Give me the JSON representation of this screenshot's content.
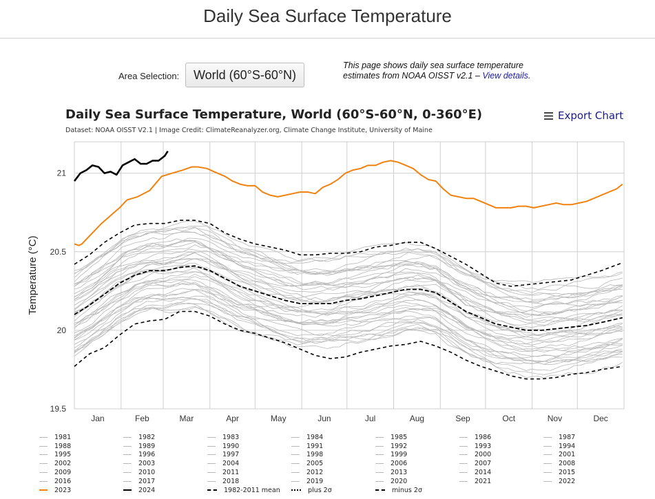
{
  "header": {
    "page_title": "Daily Sea Surface Temperature"
  },
  "controls": {
    "area_label": "Area Selection:",
    "area_value": "World (60°S-60°N)",
    "info_text": "This page shows daily sea surface temperature estimates from NOAA OISST v2.1 – ",
    "info_link": "View details",
    "info_end": "."
  },
  "chart_header": {
    "title": "Daily Sea Surface Temperature, World (60°S-60°N, 0-360°E)",
    "subtitle": "Dataset: NOAA OISST V2.1 | Image Credit: ClimateReanalyzer.org, Climate Change Institute, University of Maine",
    "export_label": "Export Chart",
    "export_icon": "menu-icon"
  },
  "chart_data": {
    "type": "line",
    "ylabel": "Temperature (°C)",
    "ylim": [
      19.5,
      21.2
    ],
    "yticks": [
      19.5,
      20,
      20.5,
      21
    ],
    "xlim": [
      0,
      365
    ],
    "month_labels": [
      "Jan",
      "Feb",
      "Mar",
      "Apr",
      "May",
      "Jun",
      "Jul",
      "Aug",
      "Sep",
      "Oct",
      "Nov",
      "Dec"
    ],
    "month_starts": [
      0,
      31,
      59,
      90,
      120,
      151,
      181,
      212,
      243,
      273,
      304,
      334
    ],
    "grid": true,
    "colors": {
      "background_years": "#b8b8b8",
      "y2023": "#f0820f",
      "y2024": "#000000",
      "stats": "#000000"
    },
    "series": [
      {
        "name": "2023",
        "x": [
          0,
          3,
          5,
          8,
          12,
          18,
          24,
          30,
          35,
          42,
          50,
          58,
          65,
          72,
          78,
          82,
          88,
          95,
          100,
          105,
          110,
          115,
          120,
          125,
          130,
          135,
          140,
          145,
          150,
          155,
          160,
          165,
          170,
          175,
          180,
          185,
          190,
          195,
          200,
          205,
          210,
          215,
          220,
          225,
          230,
          235,
          240,
          245,
          250,
          255,
          260,
          265,
          270,
          275,
          280,
          285,
          290,
          295,
          300,
          305,
          310,
          315,
          320,
          325,
          330,
          335,
          340,
          345,
          350,
          355,
          360,
          364
        ],
        "y": [
          20.55,
          20.54,
          20.55,
          20.58,
          20.62,
          20.68,
          20.73,
          20.78,
          20.83,
          20.85,
          20.89,
          20.98,
          21.0,
          21.02,
          21.04,
          21.04,
          21.03,
          21.0,
          20.98,
          20.95,
          20.93,
          20.92,
          20.92,
          20.88,
          20.86,
          20.85,
          20.86,
          20.87,
          20.88,
          20.88,
          20.87,
          20.91,
          20.93,
          20.96,
          21.0,
          21.02,
          21.03,
          21.05,
          21.05,
          21.07,
          21.08,
          21.07,
          21.05,
          21.03,
          20.99,
          20.96,
          20.95,
          20.9,
          20.86,
          20.85,
          20.84,
          20.84,
          20.82,
          20.8,
          20.78,
          20.78,
          20.78,
          20.79,
          20.79,
          20.78,
          20.79,
          20.8,
          20.81,
          20.8,
          20.8,
          20.81,
          20.82,
          20.84,
          20.86,
          20.88,
          20.9,
          20.93
        ]
      },
      {
        "name": "2024",
        "x": [
          0,
          4,
          8,
          12,
          16,
          20,
          24,
          28,
          32,
          36,
          40,
          44,
          48,
          52,
          56,
          60,
          62
        ],
        "y": [
          20.95,
          21.0,
          21.02,
          21.05,
          21.04,
          21.0,
          21.01,
          20.99,
          21.05,
          21.07,
          21.09,
          21.06,
          21.06,
          21.08,
          21.08,
          21.11,
          21.14
        ]
      },
      {
        "name": "1982-2011 mean",
        "x": [
          0,
          10,
          20,
          30,
          40,
          50,
          60,
          70,
          80,
          90,
          100,
          110,
          120,
          130,
          140,
          150,
          160,
          170,
          180,
          190,
          200,
          210,
          220,
          230,
          240,
          250,
          260,
          270,
          280,
          290,
          300,
          310,
          320,
          330,
          340,
          350,
          364
        ],
        "y": [
          20.1,
          20.16,
          20.23,
          20.3,
          20.35,
          20.38,
          20.38,
          20.4,
          20.41,
          20.38,
          20.33,
          20.28,
          20.25,
          20.22,
          20.19,
          20.17,
          20.17,
          20.17,
          20.19,
          20.2,
          20.22,
          20.24,
          20.26,
          20.26,
          20.24,
          20.18,
          20.12,
          20.08,
          20.04,
          20.02,
          20.0,
          20.0,
          20.01,
          20.02,
          20.03,
          20.05,
          20.08
        ]
      },
      {
        "name": "plus 2σ",
        "x": [
          0,
          10,
          20,
          30,
          40,
          50,
          60,
          70,
          80,
          90,
          100,
          110,
          120,
          130,
          140,
          150,
          160,
          170,
          180,
          190,
          200,
          210,
          220,
          230,
          240,
          250,
          260,
          270,
          280,
          290,
          300,
          310,
          320,
          330,
          340,
          350,
          364
        ],
        "y": [
          20.42,
          20.48,
          20.56,
          20.62,
          20.67,
          20.68,
          20.68,
          20.7,
          20.7,
          20.68,
          20.62,
          20.58,
          20.55,
          20.53,
          20.51,
          20.48,
          20.48,
          20.49,
          20.49,
          20.5,
          20.53,
          20.54,
          20.56,
          20.56,
          20.52,
          20.47,
          20.42,
          20.36,
          20.3,
          20.28,
          20.29,
          20.3,
          20.31,
          20.32,
          20.35,
          20.38,
          20.43
        ]
      },
      {
        "name": "minus 2σ",
        "x": [
          0,
          10,
          20,
          30,
          40,
          50,
          60,
          70,
          80,
          90,
          100,
          110,
          120,
          130,
          140,
          150,
          160,
          170,
          180,
          190,
          200,
          210,
          220,
          230,
          240,
          250,
          260,
          270,
          280,
          290,
          300,
          310,
          320,
          330,
          340,
          350,
          364
        ],
        "y": [
          19.77,
          19.85,
          19.89,
          19.97,
          20.04,
          20.06,
          20.07,
          20.12,
          20.12,
          20.09,
          20.04,
          20.0,
          19.98,
          19.95,
          19.92,
          19.88,
          19.84,
          19.82,
          19.83,
          19.86,
          19.88,
          19.9,
          19.91,
          19.93,
          19.9,
          19.86,
          19.81,
          19.77,
          19.74,
          19.71,
          19.69,
          19.69,
          19.7,
          19.72,
          19.73,
          19.75,
          19.77
        ]
      }
    ]
  },
  "legend": {
    "background_years": [
      "1981",
      "1982",
      "1983",
      "1984",
      "1985",
      "1986",
      "1987",
      "1988",
      "1989",
      "1990",
      "1991",
      "1992",
      "1993",
      "1994",
      "1995",
      "1996",
      "1997",
      "1998",
      "1999",
      "2000",
      "2001",
      "2002",
      "2003",
      "2004",
      "2005",
      "2006",
      "2007",
      "2008",
      "2009",
      "2010",
      "2011",
      "2012",
      "2013",
      "2014",
      "2015",
      "2016",
      "2017",
      "2018",
      "2019",
      "2020",
      "2021",
      "2022"
    ],
    "items": [
      "1981",
      "1982",
      "1983",
      "1984",
      "1985",
      "1986",
      "1987",
      "1988",
      "1989",
      "1990",
      "1991",
      "1992",
      "1993",
      "1994",
      "1995",
      "1996",
      "1997",
      "1998",
      "1999",
      "2000",
      "2001",
      "2002",
      "2003",
      "2004",
      "2005",
      "2006",
      "2007",
      "2008",
      "2009",
      "2010",
      "2011",
      "2012",
      "2013",
      "2014",
      "2015",
      "2016",
      "2017",
      "2018",
      "2019",
      "2020",
      "2021",
      "2022",
      "2023",
      "2024",
      "1982-2011 mean",
      "plus 2σ",
      "minus 2σ"
    ]
  }
}
